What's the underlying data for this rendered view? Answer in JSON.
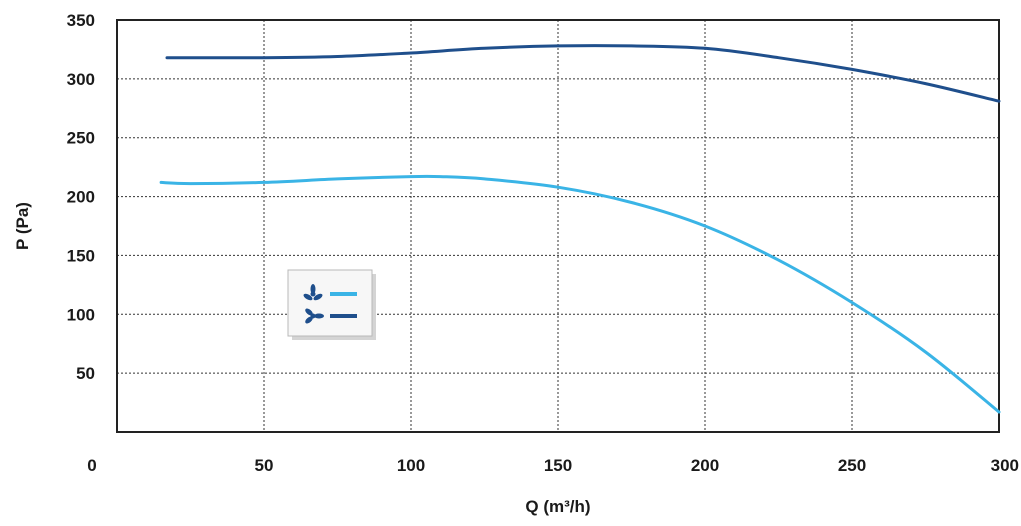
{
  "chart_data": {
    "type": "line",
    "title": "",
    "xlabel": "Q (m³/h)",
    "ylabel": "P (Pa)",
    "xlim": [
      0,
      300
    ],
    "ylim": [
      0,
      350
    ],
    "x_ticks": [
      0,
      50,
      100,
      150,
      200,
      250,
      300
    ],
    "y_ticks": [
      50,
      100,
      150,
      200,
      250,
      300,
      350
    ],
    "grid": true,
    "legend_position": "left",
    "series": [
      {
        "legend_icon": "three-blade-fan-icon",
        "color": "#3ab4e6",
        "points": [
          [
            15,
            212
          ],
          [
            25,
            211
          ],
          [
            50,
            212
          ],
          [
            75,
            215
          ],
          [
            100,
            217
          ],
          [
            110,
            217
          ],
          [
            125,
            215
          ],
          [
            150,
            208
          ],
          [
            175,
            195
          ],
          [
            200,
            175
          ],
          [
            225,
            146
          ],
          [
            250,
            110
          ],
          [
            275,
            68
          ],
          [
            300,
            17
          ]
        ]
      },
      {
        "legend_icon": "dual-fan-icon",
        "color": "#1f4f8c",
        "points": [
          [
            17,
            318
          ],
          [
            50,
            318
          ],
          [
            75,
            319
          ],
          [
            100,
            322
          ],
          [
            125,
            326
          ],
          [
            150,
            328
          ],
          [
            175,
            328
          ],
          [
            200,
            326
          ],
          [
            225,
            318
          ],
          [
            250,
            308
          ],
          [
            275,
            296
          ],
          [
            300,
            281
          ]
        ]
      }
    ]
  }
}
